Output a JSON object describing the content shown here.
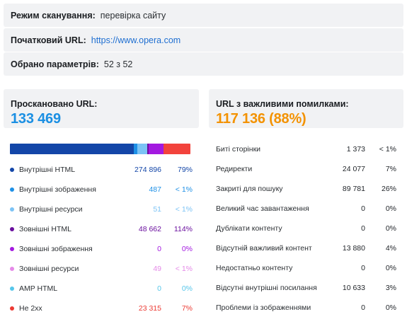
{
  "info": {
    "scan_mode_label": "Режим сканування:",
    "scan_mode_value": "перевірка сайту",
    "start_url_label": "Початковий URL:",
    "start_url_value": "https://www.opera.com",
    "params_label": "Обрано параметрів:",
    "params_value": "52 з 52"
  },
  "scanned": {
    "title": "Проскановано URL:",
    "total": "133 469",
    "color": "#1a8fe3",
    "bar": [
      {
        "name": "Внутрішні HTML",
        "fraction": 0.685,
        "color": "#1346a8"
      },
      {
        "name": "Внутрішні зображення",
        "fraction": 0.02,
        "color": "#1e90e6"
      },
      {
        "name": "Внутрішні ресурси",
        "fraction": 0.055,
        "color": "#7cc3f5"
      },
      {
        "name": "Зовнішні HTML",
        "fraction": 0.01,
        "color": "#6a0f9e"
      },
      {
        "name": "Зовнішні зображення",
        "fraction": 0.08,
        "color": "#a319e0"
      },
      {
        "name": "Не 2xx",
        "fraction": 0.15,
        "color": "#f2433c"
      }
    ],
    "items": [
      {
        "name": "Внутрішні HTML",
        "count": "274 896",
        "pct": "79%",
        "color": "#1346a8"
      },
      {
        "name": "Внутрішні зображення",
        "count": "487",
        "pct": "< 1%",
        "color": "#1e90e6"
      },
      {
        "name": "Внутрішні ресурси",
        "count": "51",
        "pct": "< 1%",
        "color": "#7cc3f5"
      },
      {
        "name": "Зовнішні HTML",
        "count": "48 662",
        "pct": "114%",
        "color": "#6a0f9e"
      },
      {
        "name": "Зовнішні зображення",
        "count": "0",
        "pct": "0%",
        "color": "#a319e0"
      },
      {
        "name": "Зовнішні ресурси",
        "count": "49",
        "pct": "< 1%",
        "color": "#e58ae8"
      },
      {
        "name": "AMP HTML",
        "count": "0",
        "pct": "0%",
        "color": "#56c6ea"
      },
      {
        "name": "Не 2xx",
        "count": "23 315",
        "pct": "7%",
        "color": "#ec3b34"
      }
    ]
  },
  "errors": {
    "title": "URL з важливими помилками:",
    "total": "117 136 (88%)",
    "color": "#f39200",
    "items": [
      {
        "name": "Биті сторінки",
        "count": "1 373",
        "pct": "< 1%"
      },
      {
        "name": "Редиректи",
        "count": "24 077",
        "pct": "7%"
      },
      {
        "name": "Закриті для пошуку",
        "count": "89 781",
        "pct": "26%"
      },
      {
        "name": "Великий час завантаження",
        "count": "0",
        "pct": "0%"
      },
      {
        "name": "Дублікати контенту",
        "count": "0",
        "pct": "0%"
      },
      {
        "name": "Відсутній важливий контент",
        "count": "13 880",
        "pct": "4%"
      },
      {
        "name": "Недостатньо контенту",
        "count": "0",
        "pct": "0%"
      },
      {
        "name": "Відсутні внутрішні посилання",
        "count": "10 633",
        "pct": "3%"
      },
      {
        "name": "Проблеми із зображеннями",
        "count": "0",
        "pct": "0%"
      }
    ]
  }
}
